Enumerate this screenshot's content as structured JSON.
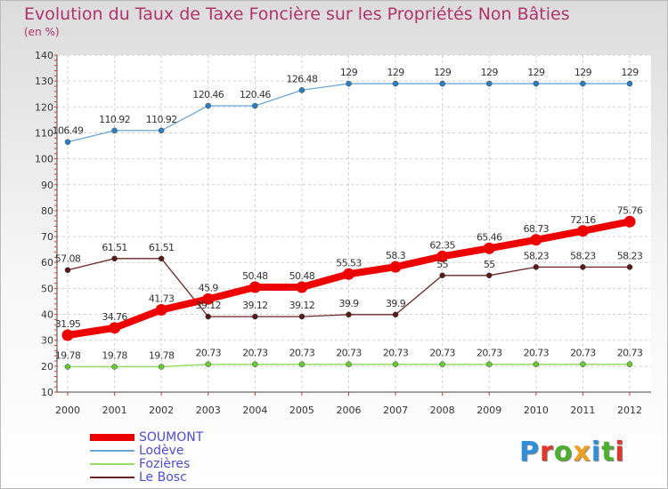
{
  "header": {
    "title": "Evolution du Taux de Taxe Foncière sur les Propriétés Non Bâties",
    "subtitle": "(en %)"
  },
  "brand": {
    "logo_text": "Proxiti",
    "letter_colors": [
      "#2f8fd8",
      "#e0362c",
      "#4caf30",
      "#f0a020",
      "#2f8fd8",
      "#4caf30",
      "#e0362c"
    ]
  },
  "chart_data": {
    "type": "line",
    "title": "Evolution du Taux de Taxe Foncière sur les Propriétés Non Bâties",
    "subtitle": "(en %)",
    "x": [
      "2000",
      "2001",
      "2002",
      "2003",
      "2004",
      "2005",
      "2006",
      "2007",
      "2008",
      "2009",
      "2010",
      "2011",
      "2012"
    ],
    "ylim": [
      10,
      140
    ],
    "yticks": [
      10,
      20,
      30,
      40,
      50,
      60,
      70,
      80,
      90,
      100,
      110,
      120,
      130,
      140
    ],
    "grid": "horizontal dashed",
    "legend": "bottom-left",
    "series": [
      {
        "name": "SOUMONT",
        "color": "#ee0000",
        "marker": "#ee0000",
        "width": 8,
        "values": [
          31.95,
          34.76,
          41.73,
          45.9,
          50.48,
          50.48,
          55.53,
          58.3,
          62.35,
          65.46,
          68.73,
          72.16,
          75.76
        ],
        "labels": [
          "31.95",
          "34.76",
          "41.73",
          "45.9",
          "50.48",
          "50.48",
          "55.53",
          "58.3",
          "62.35",
          "65.46",
          "68.73",
          "72.16",
          "75.76"
        ]
      },
      {
        "name": "Lodève",
        "color": "#6aa6d6",
        "marker": "#2d7fc0",
        "width": 1.3,
        "values": [
          106.49,
          110.92,
          110.92,
          120.46,
          120.46,
          126.48,
          129,
          129,
          129,
          129,
          129,
          129,
          129
        ],
        "labels": [
          "106.49",
          "110.92",
          "110.92",
          "120.46",
          "120.46",
          "126.48",
          "129",
          "129",
          "129",
          "129",
          "129",
          "129",
          "129"
        ]
      },
      {
        "name": "Fozières",
        "color": "#99dd66",
        "marker": "#66cc33",
        "width": 1.5,
        "values": [
          19.78,
          19.78,
          19.78,
          20.73,
          20.73,
          20.73,
          20.73,
          20.73,
          20.73,
          20.73,
          20.73,
          20.73,
          20.73
        ],
        "labels": [
          "19.78",
          "19.78",
          "19.78",
          "20.73",
          "20.73",
          "20.73",
          "20.73",
          "20.73",
          "20.73",
          "20.73",
          "20.73",
          "20.73",
          "20.73"
        ]
      },
      {
        "name": "Le Bosc",
        "color": "#6b2424",
        "marker": "#5a1a1a",
        "width": 1.3,
        "values": [
          57.08,
          61.51,
          61.51,
          39.12,
          39.12,
          39.12,
          39.9,
          39.9,
          55,
          55,
          58.23,
          58.23,
          58.23
        ],
        "labels": [
          "57.08",
          "61.51",
          "61.51",
          "39.12",
          "39.12",
          "39.12",
          "39.9",
          "39.9",
          "55",
          "55",
          "58.23",
          "58.23",
          "58.23"
        ]
      }
    ]
  }
}
